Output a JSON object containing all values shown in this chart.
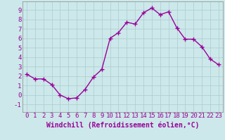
{
  "x": [
    0,
    1,
    2,
    3,
    4,
    5,
    6,
    7,
    8,
    9,
    10,
    11,
    12,
    13,
    14,
    15,
    16,
    17,
    18,
    19,
    20,
    21,
    22,
    23
  ],
  "y": [
    2.2,
    1.7,
    1.7,
    1.1,
    0.0,
    -0.4,
    -0.3,
    0.6,
    1.9,
    2.7,
    6.0,
    6.6,
    7.7,
    7.5,
    8.7,
    9.2,
    8.5,
    8.8,
    7.1,
    5.9,
    5.9,
    5.1,
    3.8,
    3.2
  ],
  "line_color": "#990099",
  "marker": "+",
  "markersize": 4,
  "linewidth": 1.0,
  "xlabel": "Windchill (Refroidissement éolien,°C)",
  "xlabel_fontsize": 7,
  "ylabel": "",
  "xlim": [
    -0.5,
    23.5
  ],
  "ylim": [
    -1.8,
    9.9
  ],
  "yticks": [
    -1,
    0,
    1,
    2,
    3,
    4,
    5,
    6,
    7,
    8,
    9
  ],
  "xticks": [
    0,
    1,
    2,
    3,
    4,
    5,
    6,
    7,
    8,
    9,
    10,
    11,
    12,
    13,
    14,
    15,
    16,
    17,
    18,
    19,
    20,
    21,
    22,
    23
  ],
  "bg_color": "#cce8ea",
  "grid_color": "#aacccc",
  "tick_color": "#990099",
  "tick_fontsize": 6.5,
  "spine_color": "#888888"
}
